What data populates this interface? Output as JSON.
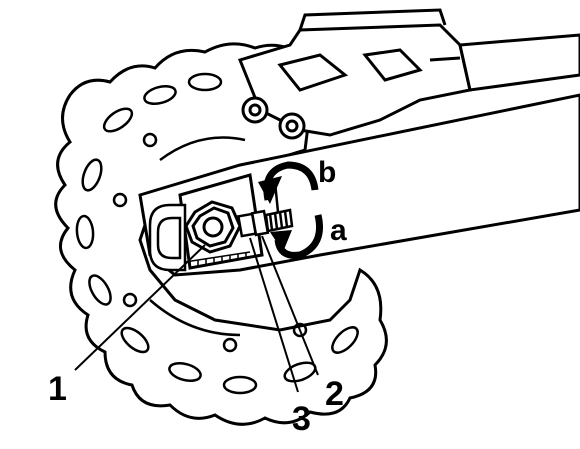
{
  "labels": {
    "callout_1": "1",
    "callout_2": "2",
    "callout_3": "3",
    "arrow_a": "a",
    "arrow_b": "b"
  },
  "colors": {
    "ink": "#000000",
    "paper": "#ffffff"
  }
}
